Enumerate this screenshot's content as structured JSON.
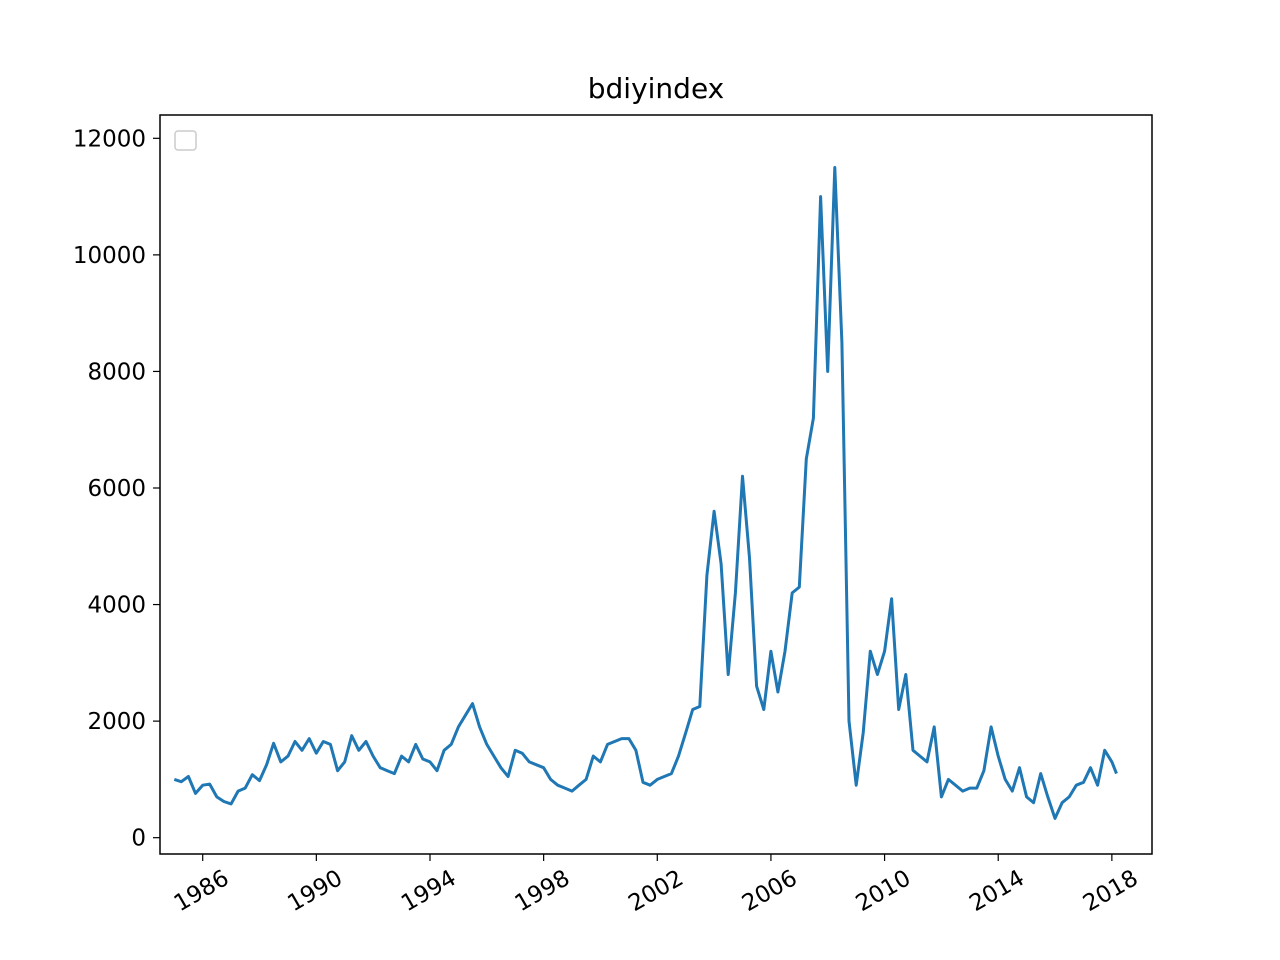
{
  "chart_data": {
    "type": "line",
    "title": "bdiyindex",
    "xlabel": "",
    "ylabel": "",
    "xlim": [
      "1984-07-01",
      "2019-06-01"
    ],
    "ylim": [
      -280,
      12400
    ],
    "x_ticks": [
      "1986",
      "1990",
      "1994",
      "1998",
      "2002",
      "2006",
      "2010",
      "2014",
      "2018"
    ],
    "y_ticks": [
      "0",
      "2000",
      "4000",
      "6000",
      "8000",
      "10000",
      "12000"
    ],
    "legend": {
      "position": "top-left",
      "entries": []
    },
    "grid": false,
    "series": [
      {
        "color": "#1f77b4",
        "points": [
          [
            "1985-01-01",
            1000
          ],
          [
            "1985-04-01",
            960
          ],
          [
            "1985-07-01",
            1050
          ],
          [
            "1985-10-01",
            760
          ],
          [
            "1986-01-01",
            900
          ],
          [
            "1986-04-01",
            920
          ],
          [
            "1986-07-01",
            700
          ],
          [
            "1986-10-01",
            620
          ],
          [
            "1987-01-01",
            580
          ],
          [
            "1987-04-01",
            800
          ],
          [
            "1987-07-01",
            850
          ],
          [
            "1987-10-01",
            1080
          ],
          [
            "1988-01-01",
            980
          ],
          [
            "1988-04-01",
            1250
          ],
          [
            "1988-07-01",
            1620
          ],
          [
            "1988-10-01",
            1300
          ],
          [
            "1989-01-01",
            1400
          ],
          [
            "1989-04-01",
            1650
          ],
          [
            "1989-07-01",
            1500
          ],
          [
            "1989-10-01",
            1700
          ],
          [
            "1990-01-01",
            1450
          ],
          [
            "1990-04-01",
            1650
          ],
          [
            "1990-07-01",
            1600
          ],
          [
            "1990-10-01",
            1150
          ],
          [
            "1991-01-01",
            1300
          ],
          [
            "1991-04-01",
            1750
          ],
          [
            "1991-07-01",
            1500
          ],
          [
            "1991-10-01",
            1650
          ],
          [
            "1992-01-01",
            1400
          ],
          [
            "1992-04-01",
            1200
          ],
          [
            "1992-07-01",
            1150
          ],
          [
            "1992-10-01",
            1100
          ],
          [
            "1993-01-01",
            1400
          ],
          [
            "1993-04-01",
            1300
          ],
          [
            "1993-07-01",
            1600
          ],
          [
            "1993-10-01",
            1350
          ],
          [
            "1994-01-01",
            1300
          ],
          [
            "1994-04-01",
            1150
          ],
          [
            "1994-07-01",
            1500
          ],
          [
            "1994-10-01",
            1600
          ],
          [
            "1995-01-01",
            1900
          ],
          [
            "1995-04-01",
            2100
          ],
          [
            "1995-07-01",
            2300
          ],
          [
            "1995-10-01",
            1900
          ],
          [
            "1996-01-01",
            1600
          ],
          [
            "1996-04-01",
            1400
          ],
          [
            "1996-07-01",
            1200
          ],
          [
            "1996-10-01",
            1050
          ],
          [
            "1997-01-01",
            1500
          ],
          [
            "1997-04-01",
            1450
          ],
          [
            "1997-07-01",
            1300
          ],
          [
            "1997-10-01",
            1250
          ],
          [
            "1998-01-01",
            1200
          ],
          [
            "1998-04-01",
            1000
          ],
          [
            "1998-07-01",
            900
          ],
          [
            "1998-10-01",
            850
          ],
          [
            "1999-01-01",
            800
          ],
          [
            "1999-04-01",
            900
          ],
          [
            "1999-07-01",
            1000
          ],
          [
            "1999-10-01",
            1400
          ],
          [
            "2000-01-01",
            1300
          ],
          [
            "2000-04-01",
            1600
          ],
          [
            "2000-07-01",
            1650
          ],
          [
            "2000-10-01",
            1700
          ],
          [
            "2001-01-01",
            1700
          ],
          [
            "2001-04-01",
            1500
          ],
          [
            "2001-07-01",
            950
          ],
          [
            "2001-10-01",
            900
          ],
          [
            "2002-01-01",
            1000
          ],
          [
            "2002-04-01",
            1050
          ],
          [
            "2002-07-01",
            1100
          ],
          [
            "2002-10-01",
            1400
          ],
          [
            "2003-01-01",
            1800
          ],
          [
            "2003-04-01",
            2200
          ],
          [
            "2003-07-01",
            2250
          ],
          [
            "2003-10-01",
            4500
          ],
          [
            "2004-01-01",
            5600
          ],
          [
            "2004-04-01",
            4700
          ],
          [
            "2004-07-01",
            2800
          ],
          [
            "2004-10-01",
            4200
          ],
          [
            "2005-01-01",
            6200
          ],
          [
            "2005-04-01",
            4800
          ],
          [
            "2005-07-01",
            2600
          ],
          [
            "2005-10-01",
            2200
          ],
          [
            "2006-01-01",
            3200
          ],
          [
            "2006-04-01",
            2500
          ],
          [
            "2006-07-01",
            3200
          ],
          [
            "2006-10-01",
            4200
          ],
          [
            "2007-01-01",
            4300
          ],
          [
            "2007-04-01",
            6500
          ],
          [
            "2007-07-01",
            7200
          ],
          [
            "2007-10-01",
            11000
          ],
          [
            "2008-01-01",
            8000
          ],
          [
            "2008-04-01",
            11500
          ],
          [
            "2008-07-01",
            8500
          ],
          [
            "2008-10-01",
            2000
          ],
          [
            "2009-01-01",
            900
          ],
          [
            "2009-04-01",
            1800
          ],
          [
            "2009-07-01",
            3200
          ],
          [
            "2009-10-01",
            2800
          ],
          [
            "2010-01-01",
            3200
          ],
          [
            "2010-04-01",
            4100
          ],
          [
            "2010-07-01",
            2200
          ],
          [
            "2010-10-01",
            2800
          ],
          [
            "2011-01-01",
            1500
          ],
          [
            "2011-04-01",
            1400
          ],
          [
            "2011-07-01",
            1300
          ],
          [
            "2011-10-01",
            1900
          ],
          [
            "2012-01-01",
            700
          ],
          [
            "2012-04-01",
            1000
          ],
          [
            "2012-07-01",
            900
          ],
          [
            "2012-10-01",
            800
          ],
          [
            "2013-01-01",
            850
          ],
          [
            "2013-04-01",
            850
          ],
          [
            "2013-07-01",
            1150
          ],
          [
            "2013-10-01",
            1900
          ],
          [
            "2014-01-01",
            1400
          ],
          [
            "2014-04-01",
            1000
          ],
          [
            "2014-07-01",
            800
          ],
          [
            "2014-10-01",
            1200
          ],
          [
            "2015-01-01",
            700
          ],
          [
            "2015-04-01",
            600
          ],
          [
            "2015-07-01",
            1100
          ],
          [
            "2015-10-01",
            700
          ],
          [
            "2016-01-01",
            330
          ],
          [
            "2016-04-01",
            600
          ],
          [
            "2016-07-01",
            700
          ],
          [
            "2016-10-01",
            900
          ],
          [
            "2017-01-01",
            950
          ],
          [
            "2017-04-01",
            1200
          ],
          [
            "2017-07-01",
            900
          ],
          [
            "2017-10-01",
            1500
          ],
          [
            "2018-01-01",
            1300
          ],
          [
            "2018-03-01",
            1100
          ]
        ]
      }
    ]
  }
}
